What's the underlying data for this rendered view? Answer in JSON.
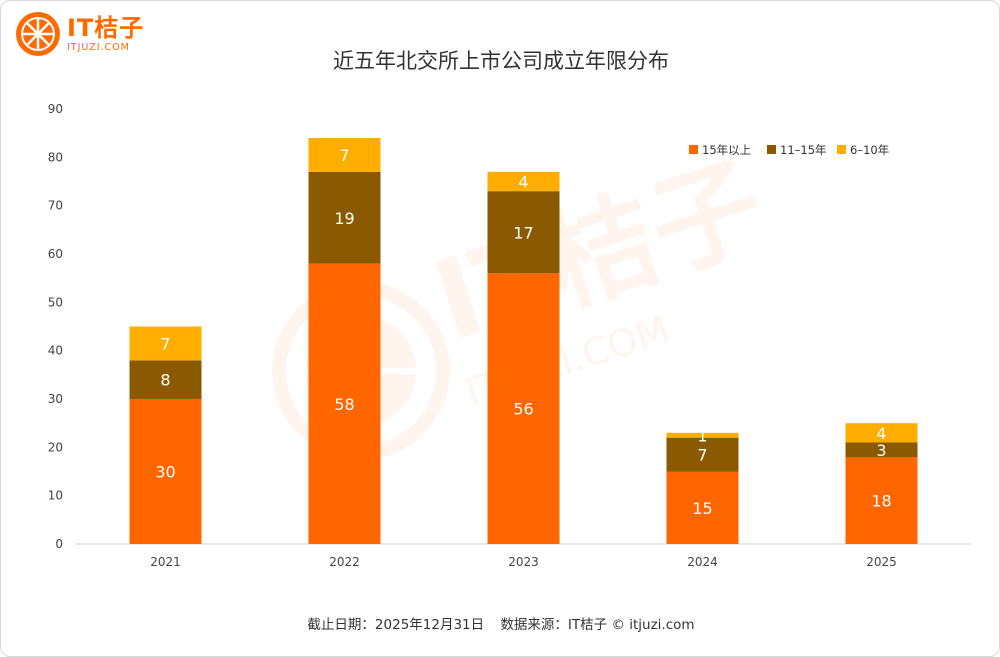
{
  "brand": {
    "name": "IT桔子",
    "url": "ITJUZI.COM"
  },
  "footer": {
    "date_text": "截止日期：2025年12月31日",
    "source_text": "数据来源：IT桔子 © itjuzi.com"
  },
  "colors": {
    "series_15plus": "#ff6600",
    "series_11_15": "#8b5a00",
    "series_6_10": "#ffae00",
    "brand": "#ff6a00"
  },
  "chart_data": {
    "type": "bar",
    "stacked": true,
    "title": "近五年北交所上市公司成立年限分布",
    "categories": [
      "2021",
      "2022",
      "2023",
      "2024",
      "2025"
    ],
    "series": [
      {
        "name": "15年以上",
        "values": [
          30,
          58,
          56,
          15,
          18
        ]
      },
      {
        "name": "11–15年",
        "values": [
          8,
          19,
          17,
          7,
          3
        ]
      },
      {
        "name": "6–10年",
        "values": [
          7,
          7,
          4,
          1,
          4
        ]
      }
    ],
    "ylim": [
      0,
      90
    ],
    "yticks": [
      0,
      10,
      20,
      30,
      40,
      50,
      60,
      70,
      80,
      90
    ],
    "legend_position": "top-right",
    "grid": false
  }
}
